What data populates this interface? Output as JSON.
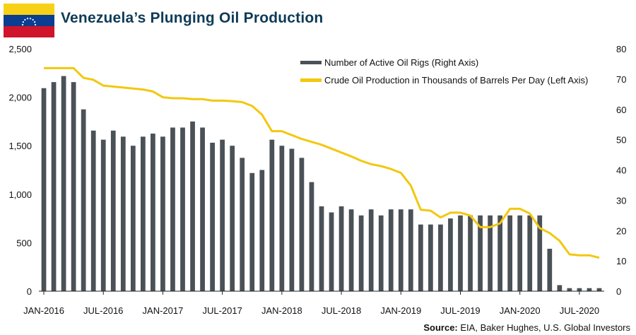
{
  "header": {
    "title": "Venezuela’s Plunging Oil Production",
    "flag_colors": [
      "#f7d117",
      "#0b3d91",
      "#cf142b"
    ]
  },
  "source": {
    "label": "Source:",
    "text": "EIA, Baker Hughes, U.S. Global Investors"
  },
  "chart_data": {
    "type": "bar+line",
    "x_start": "2016-01",
    "months": 57,
    "x_ticks": [
      {
        "label": "JAN-2016",
        "index": 0
      },
      {
        "label": "JUL-2016",
        "index": 6
      },
      {
        "label": "JAN-2017",
        "index": 12
      },
      {
        "label": "JUL-2017",
        "index": 18
      },
      {
        "label": "JAN-2018",
        "index": 24
      },
      {
        "label": "JUL-2018",
        "index": 30
      },
      {
        "label": "JAN-2019",
        "index": 36
      },
      {
        "label": "JUL-2019",
        "index": 42
      },
      {
        "label": "JAN-2020",
        "index": 48
      },
      {
        "label": "JUL-2020",
        "index": 54
      }
    ],
    "left_axis": {
      "min": 0,
      "max": 2500,
      "ticks": [
        "0",
        "500",
        "1,000",
        "1,500",
        "2,000",
        "2,500"
      ],
      "tick_values": [
        0,
        500,
        1000,
        1500,
        2000,
        2500
      ]
    },
    "right_axis": {
      "min": 0,
      "max": 80,
      "ticks": [
        "0",
        "10",
        "20",
        "30",
        "40",
        "50",
        "60",
        "70",
        "80"
      ],
      "tick_values": [
        0,
        10,
        20,
        30,
        40,
        50,
        60,
        70,
        80
      ]
    },
    "series": [
      {
        "name": "Number of Active Oil Rigs (Right Axis)",
        "type": "bar",
        "axis": "right",
        "color": "#4a5157",
        "values": [
          67,
          69,
          71,
          69,
          60,
          53,
          50,
          53,
          51,
          48,
          51,
          52,
          51,
          54,
          54,
          56,
          54,
          49,
          50,
          48,
          44,
          39,
          40,
          50,
          48,
          47,
          44,
          36,
          28,
          26,
          28,
          27,
          25,
          27,
          25,
          27,
          27,
          27,
          22,
          22,
          22,
          24,
          25,
          25,
          25,
          25,
          25,
          25,
          25,
          25,
          25,
          14,
          2,
          1,
          1,
          1,
          1
        ]
      },
      {
        "name": "Crude Oil Production in Thousands of Barrels Per Day (Left Axis)",
        "type": "line",
        "axis": "left",
        "color": "#f2c80f",
        "values": [
          2300,
          2300,
          2300,
          2300,
          2200,
          2180,
          2120,
          2110,
          2100,
          2090,
          2080,
          2060,
          2000,
          1990,
          1990,
          1980,
          1980,
          1965,
          1965,
          1960,
          1950,
          1910,
          1820,
          1650,
          1650,
          1610,
          1570,
          1540,
          1510,
          1470,
          1430,
          1390,
          1345,
          1310,
          1290,
          1260,
          1220,
          1090,
          840,
          830,
          760,
          810,
          810,
          780,
          660,
          660,
          700,
          850,
          850,
          800,
          650,
          600,
          520,
          380,
          370,
          370,
          345
        ]
      }
    ],
    "legend_position": "top-right"
  }
}
